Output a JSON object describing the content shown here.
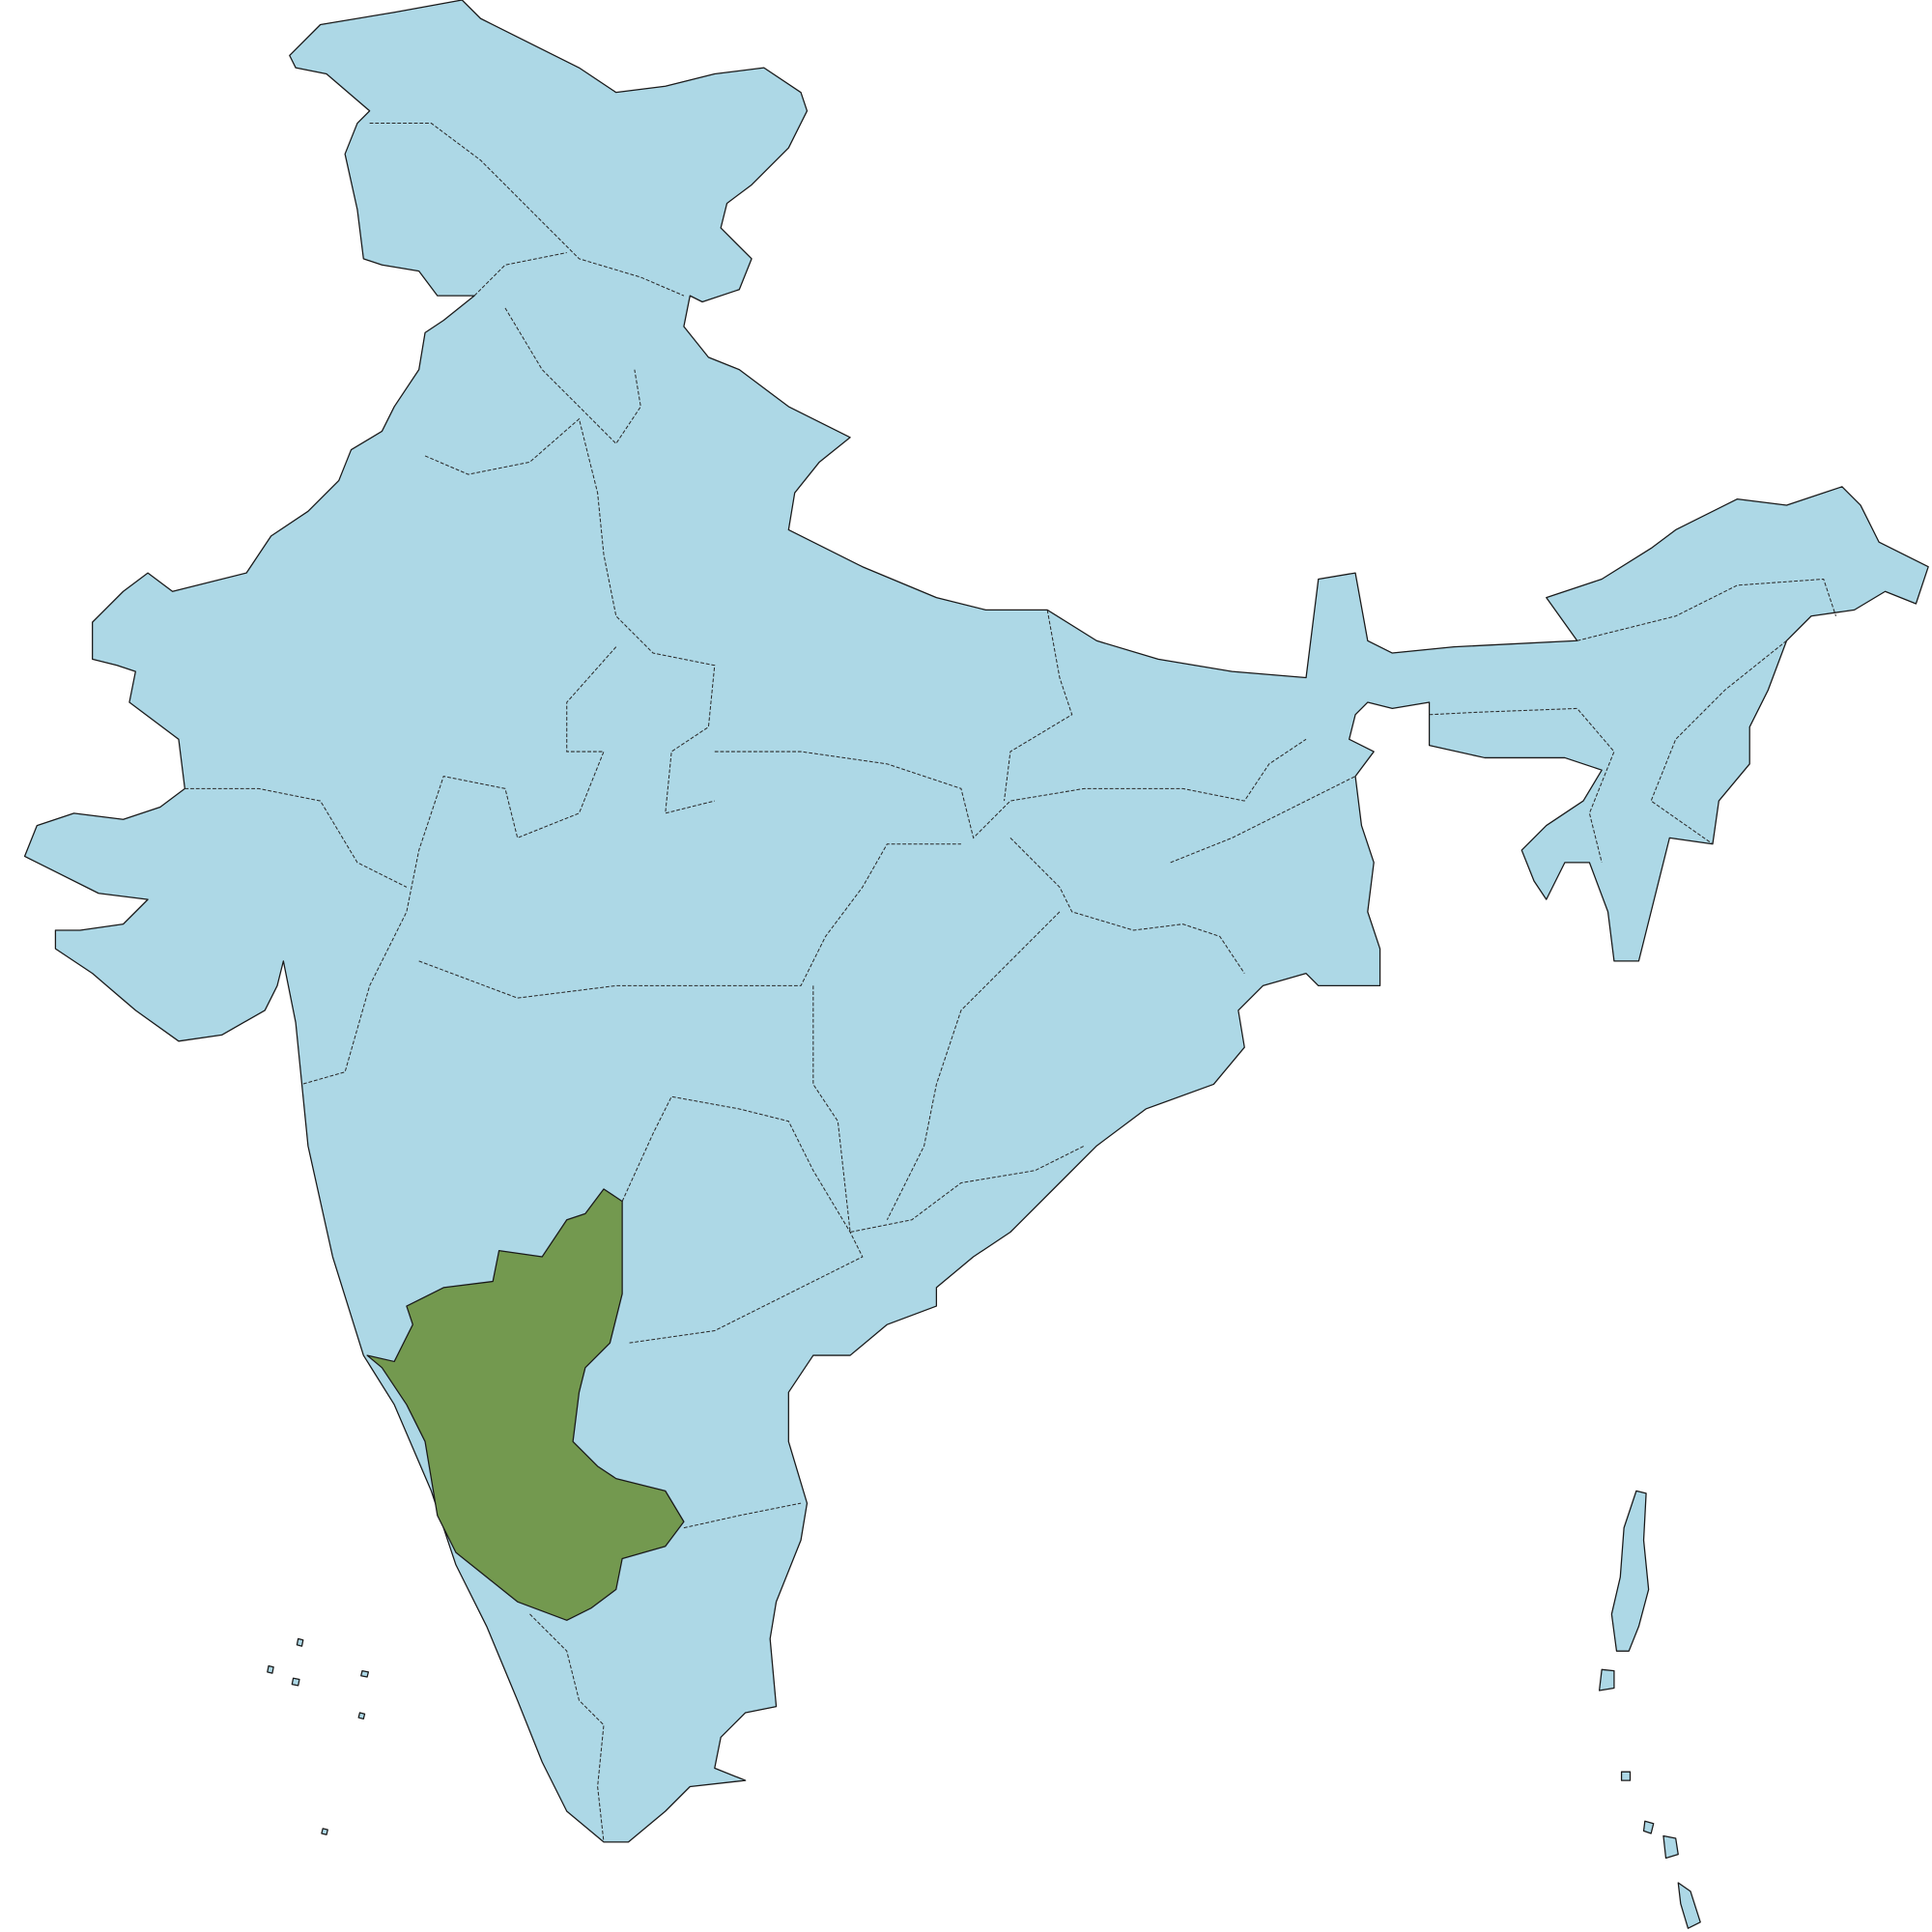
{
  "map": {
    "colors": {
      "land": "#add8e6",
      "highlight": "#73994f",
      "outline": "#1a1a1a",
      "background": "#ffffff"
    }
  }
}
